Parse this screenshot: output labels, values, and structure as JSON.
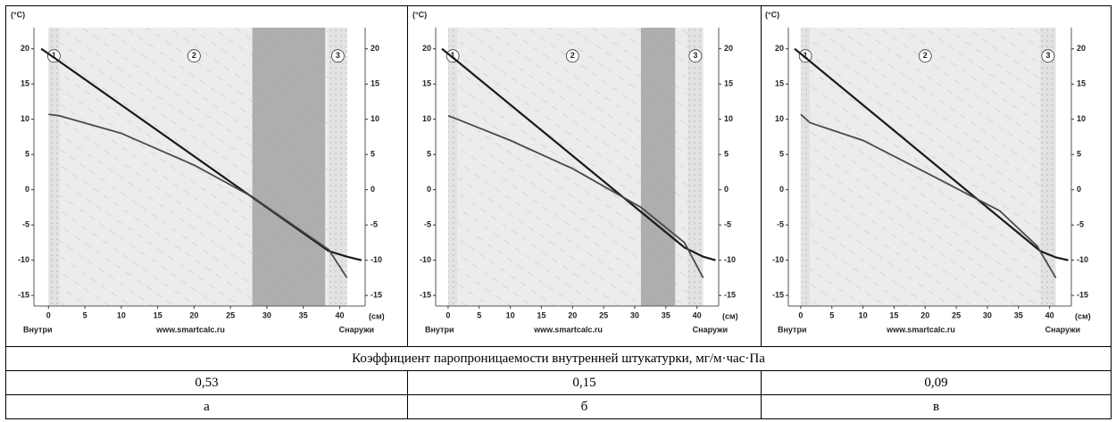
{
  "chart_data": [
    {
      "type": "line",
      "y_unit": "(°C)",
      "x_unit": "(см)",
      "left_label": "Внутри",
      "center_label": "www.smartcalc.ru",
      "right_label": "Снаружи",
      "layer_labels": [
        "1",
        "2",
        "3"
      ],
      "layers": [
        0,
        1.5,
        38.5,
        41
      ],
      "zone": [
        28,
        38
      ],
      "xlim": [
        -2,
        43.5
      ],
      "ylim": [
        -16.5,
        23
      ],
      "xticks": [
        0,
        5,
        10,
        15,
        20,
        25,
        30,
        35,
        40
      ],
      "yticks": [
        -15,
        -10,
        -5,
        0,
        5,
        10,
        15,
        20
      ],
      "series": [
        {
          "color": "#1a1a1a",
          "x": [
            -1,
            0,
            38.5,
            41,
            43
          ],
          "values": [
            20,
            19.3,
            -8.7,
            -9.5,
            -10
          ]
        },
        {
          "color": "#4a4a4a",
          "x": [
            0,
            1.5,
            10,
            20,
            28,
            38.5,
            41
          ],
          "values": [
            10.7,
            10.5,
            8,
            3.5,
            -1,
            -8.5,
            -12.5
          ]
        }
      ]
    },
    {
      "type": "line",
      "y_unit": "(°C)",
      "x_unit": "(см)",
      "left_label": "Внутри",
      "center_label": "www.smartcalc.ru",
      "right_label": "Снаружи",
      "layer_labels": [
        "1",
        "2",
        "3"
      ],
      "layers": [
        0,
        1.5,
        38.5,
        41
      ],
      "zone": [
        31,
        36.5
      ],
      "xlim": [
        -2,
        43.5
      ],
      "ylim": [
        -16.5,
        23
      ],
      "xticks": [
        0,
        5,
        10,
        15,
        20,
        25,
        30,
        35,
        40
      ],
      "yticks": [
        -15,
        -10,
        -5,
        0,
        5,
        10,
        15,
        20
      ],
      "series": [
        {
          "color": "#1a1a1a",
          "x": [
            -1,
            0,
            38,
            41,
            43
          ],
          "values": [
            20,
            19.3,
            -8.2,
            -9.5,
            -10
          ]
        },
        {
          "color": "#4a4a4a",
          "x": [
            0,
            1.5,
            10,
            20,
            31,
            38,
            41
          ],
          "values": [
            10.5,
            10,
            7,
            3,
            -2.5,
            -7.5,
            -12.5
          ]
        }
      ]
    },
    {
      "type": "line",
      "y_unit": "(°C)",
      "x_unit": "(см)",
      "left_label": "Внутри",
      "center_label": "www.smartcalc.ru",
      "right_label": "Снаружи",
      "layer_labels": [
        "1",
        "2",
        "3"
      ],
      "layers": [
        0,
        1.5,
        38.5,
        41
      ],
      "xlim": [
        -2,
        43.5
      ],
      "ylim": [
        -16.5,
        23
      ],
      "xticks": [
        0,
        5,
        10,
        15,
        20,
        25,
        30,
        35,
        40
      ],
      "yticks": [
        -15,
        -10,
        -5,
        0,
        5,
        10,
        15,
        20
      ],
      "series": [
        {
          "color": "#1a1a1a",
          "x": [
            -1,
            0,
            38.5,
            41,
            43
          ],
          "values": [
            20,
            19.3,
            -8.7,
            -9.6,
            -10
          ]
        },
        {
          "color": "#4a4a4a",
          "x": [
            0,
            1.5,
            10,
            20,
            32,
            38,
            41
          ],
          "values": [
            10.7,
            9.5,
            7,
            2.5,
            -3,
            -8,
            -12.5
          ]
        }
      ]
    }
  ],
  "table": {
    "caption": "Коэффициент паропроницаемости внутренней штукатурки, мг/м·час·Па",
    "values": [
      "0,53",
      "0,15",
      "0,09"
    ],
    "labels": [
      "а",
      "б",
      "в"
    ]
  }
}
